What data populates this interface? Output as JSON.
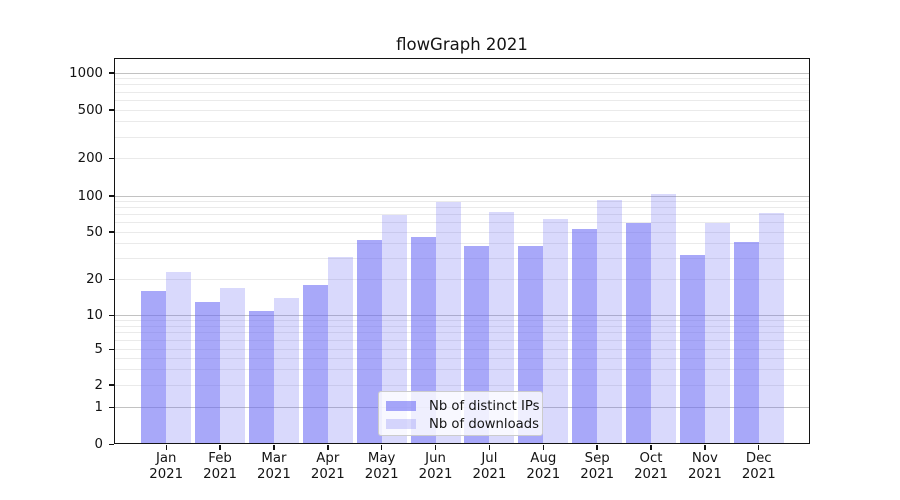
{
  "chart_data": {
    "type": "bar",
    "title": "flowGraph 2021",
    "year": "2021",
    "categories": [
      "Jan",
      "Feb",
      "Mar",
      "Apr",
      "May",
      "Jun",
      "Jul",
      "Aug",
      "Sep",
      "Oct",
      "Nov",
      "Dec"
    ],
    "series": [
      {
        "name": "Nb of distinct IPs",
        "color": "rgba(105,105,245,0.58)",
        "values": [
          16,
          13,
          11,
          18,
          43,
          45,
          38,
          38,
          53,
          60,
          32,
          41
        ]
      },
      {
        "name": "Nb of downloads",
        "color": "rgba(105,105,245,0.25)",
        "values": [
          23,
          17,
          14,
          31,
          70,
          89,
          74,
          64,
          93,
          103,
          60,
          72
        ]
      }
    ],
    "y_axis": {
      "scale": "symlog",
      "tick_values": [
        0,
        1,
        2,
        5,
        10,
        20,
        50,
        100,
        200,
        500,
        1000
      ],
      "tick_labels": [
        "0",
        "1",
        "2",
        "5",
        "10",
        "20",
        "50",
        "100",
        "200",
        "500",
        "1000"
      ],
      "major_grid_values": [
        1,
        10,
        100,
        1000
      ],
      "ylim_top": 1300
    },
    "grid": true,
    "legend_position": "lower-center"
  }
}
